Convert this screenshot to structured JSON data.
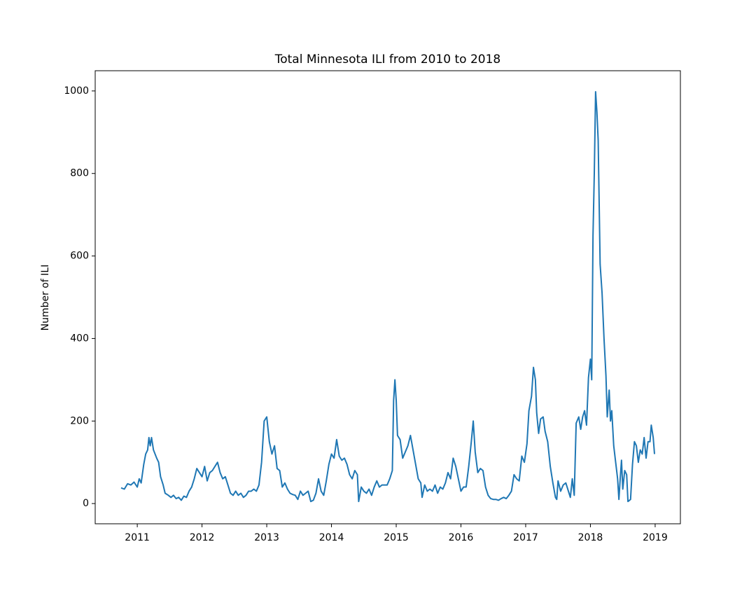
{
  "chart_data": {
    "type": "line",
    "title": "Total Minnesota ILI from 2010 to 2018",
    "y_label": "Number of ILI",
    "xlim": [
      2010.35,
      2019.39
    ],
    "xticks": [
      2011,
      2012,
      2013,
      2014,
      2015,
      2016,
      2017,
      2018,
      2019
    ],
    "ylim": [
      -49,
      1049
    ],
    "yticks": [
      0,
      200,
      400,
      600,
      800,
      1000
    ],
    "grid": false,
    "series": [
      {
        "color": "#1f77b4",
        "x": [
          2010.75,
          2010.8,
          2010.85,
          2010.9,
          2010.95,
          2011.0,
          2011.03,
          2011.06,
          2011.1,
          2011.13,
          2011.16,
          2011.18,
          2011.2,
          2011.22,
          2011.25,
          2011.3,
          2011.33,
          2011.36,
          2011.4,
          2011.43,
          2011.48,
          2011.52,
          2011.56,
          2011.6,
          2011.64,
          2011.68,
          2011.72,
          2011.76,
          2011.8,
          2011.84,
          2011.88,
          2011.92,
          2011.96,
          2012.0,
          2012.04,
          2012.08,
          2012.12,
          2012.16,
          2012.2,
          2012.24,
          2012.28,
          2012.32,
          2012.36,
          2012.4,
          2012.44,
          2012.48,
          2012.52,
          2012.56,
          2012.6,
          2012.64,
          2012.68,
          2012.72,
          2012.76,
          2012.8,
          2012.84,
          2012.88,
          2012.92,
          2012.96,
          2013.0,
          2013.04,
          2013.08,
          2013.12,
          2013.16,
          2013.2,
          2013.24,
          2013.28,
          2013.32,
          2013.36,
          2013.4,
          2013.44,
          2013.48,
          2013.52,
          2013.56,
          2013.6,
          2013.64,
          2013.68,
          2013.72,
          2013.76,
          2013.8,
          2013.84,
          2013.88,
          2013.92,
          2013.96,
          2014.0,
          2014.04,
          2014.08,
          2014.12,
          2014.16,
          2014.2,
          2014.24,
          2014.28,
          2014.32,
          2014.36,
          2014.4,
          2014.42,
          2014.46,
          2014.5,
          2014.54,
          2014.58,
          2014.62,
          2014.66,
          2014.7,
          2014.74,
          2014.78,
          2014.82,
          2014.86,
          2014.9,
          2014.94,
          2014.96,
          2014.98,
          2015.0,
          2015.02,
          2015.06,
          2015.1,
          2015.14,
          2015.18,
          2015.22,
          2015.26,
          2015.3,
          2015.34,
          2015.38,
          2015.4,
          2015.44,
          2015.48,
          2015.52,
          2015.56,
          2015.6,
          2015.64,
          2015.68,
          2015.72,
          2015.76,
          2015.8,
          2015.84,
          2015.88,
          2015.92,
          2015.96,
          2016.0,
          2016.04,
          2016.08,
          2016.12,
          2016.16,
          2016.19,
          2016.22,
          2016.26,
          2016.3,
          2016.34,
          2016.38,
          2016.42,
          2016.46,
          2016.5,
          2016.54,
          2016.58,
          2016.62,
          2016.66,
          2016.7,
          2016.74,
          2016.78,
          2016.82,
          2016.86,
          2016.9,
          2016.94,
          2016.98,
          2017.02,
          2017.05,
          2017.09,
          2017.12,
          2017.15,
          2017.17,
          2017.2,
          2017.23,
          2017.27,
          2017.3,
          2017.34,
          2017.38,
          2017.42,
          2017.46,
          2017.48,
          2017.5,
          2017.54,
          2017.58,
          2017.62,
          2017.66,
          2017.69,
          2017.72,
          2017.75,
          2017.78,
          2017.82,
          2017.85,
          2017.88,
          2017.91,
          2017.94,
          2017.97,
          2018.0,
          2018.02,
          2018.04,
          2018.06,
          2018.08,
          2018.1,
          2018.12,
          2018.15,
          2018.18,
          2018.21,
          2018.24,
          2018.26,
          2018.29,
          2018.31,
          2018.33,
          2018.36,
          2018.39,
          2018.42,
          2018.44,
          2018.46,
          2018.48,
          2018.5,
          2018.53,
          2018.56,
          2018.58,
          2018.62,
          2018.65,
          2018.68,
          2018.71,
          2018.74,
          2018.77,
          2018.8,
          2018.83,
          2018.86,
          2018.89,
          2018.92,
          2018.94,
          2018.97,
          2018.99
        ],
        "values": [
          38,
          35,
          48,
          45,
          52,
          40,
          60,
          50,
          95,
          120,
          130,
          160,
          140,
          160,
          130,
          110,
          100,
          65,
          45,
          25,
          20,
          15,
          20,
          12,
          15,
          8,
          18,
          15,
          30,
          40,
          60,
          85,
          75,
          65,
          90,
          55,
          75,
          80,
          90,
          100,
          75,
          60,
          65,
          45,
          25,
          20,
          30,
          20,
          25,
          15,
          20,
          30,
          30,
          35,
          30,
          45,
          100,
          200,
          210,
          150,
          120,
          140,
          85,
          80,
          40,
          50,
          35,
          25,
          22,
          20,
          10,
          30,
          20,
          25,
          30,
          5,
          8,
          25,
          60,
          30,
          20,
          55,
          95,
          120,
          110,
          155,
          115,
          105,
          110,
          95,
          70,
          60,
          80,
          70,
          5,
          40,
          30,
          25,
          35,
          20,
          40,
          55,
          40,
          45,
          45,
          45,
          60,
          80,
          250,
          300,
          250,
          165,
          155,
          110,
          125,
          140,
          165,
          130,
          95,
          60,
          50,
          15,
          45,
          30,
          35,
          30,
          45,
          25,
          40,
          35,
          50,
          75,
          60,
          110,
          90,
          60,
          30,
          40,
          40,
          90,
          150,
          200,
          125,
          75,
          85,
          80,
          40,
          20,
          12,
          10,
          10,
          8,
          12,
          15,
          12,
          20,
          30,
          70,
          60,
          55,
          115,
          100,
          145,
          225,
          260,
          330,
          300,
          220,
          170,
          205,
          210,
          175,
          150,
          90,
          50,
          15,
          10,
          55,
          30,
          45,
          50,
          30,
          15,
          60,
          20,
          195,
          210,
          180,
          210,
          225,
          190,
          305,
          350,
          300,
          650,
          800,
          998,
          950,
          880,
          580,
          510,
          400,
          310,
          210,
          275,
          200,
          225,
          140,
          100,
          60,
          10,
          60,
          105,
          35,
          80,
          70,
          5,
          10,
          95,
          150,
          140,
          100,
          130,
          120,
          160,
          110,
          150,
          150,
          190,
          160,
          120
        ]
      }
    ]
  }
}
